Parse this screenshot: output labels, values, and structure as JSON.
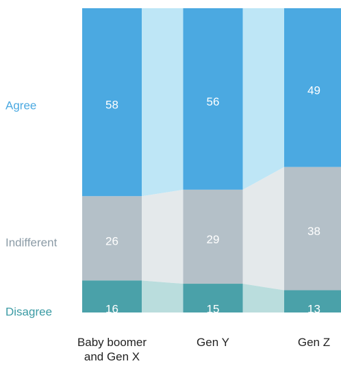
{
  "chart_data": {
    "type": "stacked-bar",
    "categories": [
      "Baby boomer and Gen X",
      "Gen Y",
      "Gen Z"
    ],
    "series": [
      {
        "name": "Agree",
        "color": "#4ba9e1",
        "values": [
          58,
          56,
          49
        ]
      },
      {
        "name": "Indifferent",
        "color": "#b4c0c8",
        "values": [
          26,
          29,
          38
        ]
      },
      {
        "name": "Disagree",
        "color": "#4aa1a9",
        "values": [
          16,
          15,
          13
        ]
      }
    ]
  }
}
